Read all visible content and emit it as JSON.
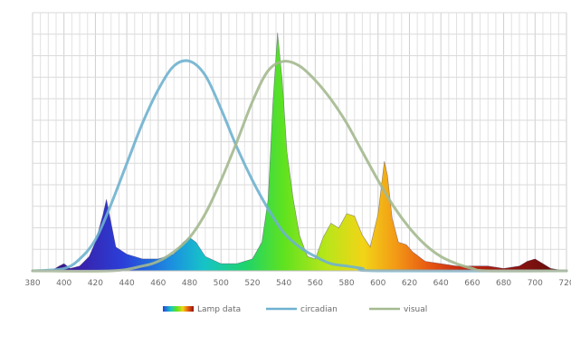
{
  "chart_data": {
    "type": "area",
    "title": "",
    "xlabel": "",
    "ylabel": "",
    "xlim": [
      380,
      720
    ],
    "ylim": [
      0,
      1
    ],
    "x_ticks": [
      "380",
      "400",
      "420",
      "440",
      "460",
      "480",
      "500",
      "520",
      "540",
      "560",
      "580",
      "600",
      "620",
      "640",
      "660",
      "680",
      "700",
      "720"
    ],
    "grid": true,
    "legend": {
      "placement": "bottom-center",
      "entries": [
        {
          "label": "Lamp data",
          "kind": "spectrum"
        },
        {
          "label": "circadian",
          "kind": "line",
          "color": "#6fb1cf"
        },
        {
          "label": "visual",
          "kind": "line",
          "color": "#a4b98f"
        }
      ]
    },
    "series": [
      {
        "name": "Lamp data",
        "type": "area",
        "points": [
          [
            380,
            0.0
          ],
          [
            392,
            0.0
          ],
          [
            397,
            0.02
          ],
          [
            400,
            0.03
          ],
          [
            404,
            0.01
          ],
          [
            410,
            0.02
          ],
          [
            416,
            0.06
          ],
          [
            420,
            0.12
          ],
          [
            425,
            0.24
          ],
          [
            427,
            0.3
          ],
          [
            430,
            0.2
          ],
          [
            433,
            0.1
          ],
          [
            440,
            0.07
          ],
          [
            450,
            0.05
          ],
          [
            460,
            0.05
          ],
          [
            470,
            0.07
          ],
          [
            476,
            0.12
          ],
          [
            480,
            0.14
          ],
          [
            484,
            0.12
          ],
          [
            490,
            0.06
          ],
          [
            500,
            0.03
          ],
          [
            510,
            0.03
          ],
          [
            520,
            0.05
          ],
          [
            526,
            0.12
          ],
          [
            530,
            0.3
          ],
          [
            533,
            0.7
          ],
          [
            536,
            1.0
          ],
          [
            539,
            0.8
          ],
          [
            542,
            0.5
          ],
          [
            546,
            0.3
          ],
          [
            550,
            0.15
          ],
          [
            555,
            0.06
          ],
          [
            560,
            0.05
          ],
          [
            565,
            0.14
          ],
          [
            570,
            0.2
          ],
          [
            575,
            0.18
          ],
          [
            580,
            0.24
          ],
          [
            585,
            0.23
          ],
          [
            590,
            0.15
          ],
          [
            595,
            0.1
          ],
          [
            600,
            0.24
          ],
          [
            604,
            0.46
          ],
          [
            606,
            0.4
          ],
          [
            609,
            0.22
          ],
          [
            613,
            0.12
          ],
          [
            618,
            0.11
          ],
          [
            622,
            0.08
          ],
          [
            630,
            0.04
          ],
          [
            640,
            0.03
          ],
          [
            650,
            0.02
          ],
          [
            660,
            0.02
          ],
          [
            670,
            0.02
          ],
          [
            680,
            0.01
          ],
          [
            690,
            0.02
          ],
          [
            695,
            0.04
          ],
          [
            700,
            0.05
          ],
          [
            705,
            0.03
          ],
          [
            710,
            0.01
          ],
          [
            720,
            0.0
          ]
        ]
      },
      {
        "name": "circadian",
        "type": "line",
        "color": "#6fb1cf",
        "points": [
          [
            380,
            0.0
          ],
          [
            400,
            0.01
          ],
          [
            410,
            0.05
          ],
          [
            420,
            0.13
          ],
          [
            430,
            0.28
          ],
          [
            440,
            0.45
          ],
          [
            450,
            0.62
          ],
          [
            460,
            0.76
          ],
          [
            470,
            0.86
          ],
          [
            480,
            0.88
          ],
          [
            490,
            0.82
          ],
          [
            500,
            0.68
          ],
          [
            510,
            0.52
          ],
          [
            520,
            0.38
          ],
          [
            530,
            0.26
          ],
          [
            540,
            0.16
          ],
          [
            550,
            0.1
          ],
          [
            560,
            0.06
          ],
          [
            570,
            0.03
          ],
          [
            580,
            0.02
          ],
          [
            590,
            0.01
          ],
          [
            600,
            0.0
          ],
          [
            720,
            0.0
          ]
        ]
      },
      {
        "name": "visual",
        "type": "line",
        "color": "#a4b98f",
        "points": [
          [
            380,
            0.0
          ],
          [
            430,
            0.0
          ],
          [
            450,
            0.02
          ],
          [
            460,
            0.04
          ],
          [
            470,
            0.08
          ],
          [
            480,
            0.14
          ],
          [
            490,
            0.24
          ],
          [
            500,
            0.38
          ],
          [
            510,
            0.54
          ],
          [
            520,
            0.71
          ],
          [
            530,
            0.84
          ],
          [
            540,
            0.88
          ],
          [
            550,
            0.86
          ],
          [
            560,
            0.8
          ],
          [
            570,
            0.72
          ],
          [
            580,
            0.62
          ],
          [
            590,
            0.5
          ],
          [
            600,
            0.38
          ],
          [
            610,
            0.27
          ],
          [
            620,
            0.18
          ],
          [
            630,
            0.11
          ],
          [
            640,
            0.06
          ],
          [
            650,
            0.03
          ],
          [
            660,
            0.01
          ],
          [
            670,
            0.0
          ],
          [
            720,
            0.0
          ]
        ]
      }
    ]
  }
}
